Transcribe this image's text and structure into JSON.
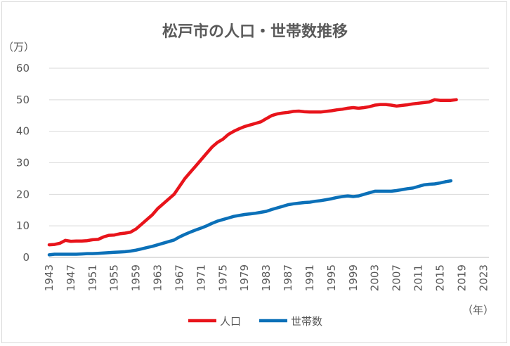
{
  "chart_data": {
    "type": "line",
    "title": "松戸市の人口・世帯数推移",
    "y_unit_label": "（万）",
    "x_unit_label": "（年）",
    "ylim": [
      0,
      60
    ],
    "yticks": [
      "0",
      "10",
      "20",
      "30",
      "40",
      "50",
      "60"
    ],
    "xlim": [
      1943,
      2024
    ],
    "xticks": [
      "1943",
      "1947",
      "1951",
      "1955",
      "1959",
      "1963",
      "1967",
      "1971",
      "1975",
      "1979",
      "1983",
      "1987",
      "1991",
      "1995",
      "1999",
      "2003",
      "2007",
      "2011",
      "2015",
      "2019",
      "2023"
    ],
    "grid": "horizontal",
    "legend_position": "bottom",
    "colors": {
      "population": "#e8141b",
      "households": "#0b70b8",
      "grid": "#d9d9d9",
      "axis": "#bfbfbf"
    },
    "series": [
      {
        "name": "人口",
        "color": "#e8141b",
        "points": [
          [
            1943,
            4.0
          ],
          [
            1944,
            4.1
          ],
          [
            1945,
            4.5
          ],
          [
            1946,
            5.4
          ],
          [
            1947,
            5.1
          ],
          [
            1948,
            5.2
          ],
          [
            1949,
            5.2
          ],
          [
            1950,
            5.3
          ],
          [
            1951,
            5.6
          ],
          [
            1952,
            5.7
          ],
          [
            1953,
            6.5
          ],
          [
            1954,
            7.0
          ],
          [
            1955,
            7.1
          ],
          [
            1956,
            7.5
          ],
          [
            1957,
            7.7
          ],
          [
            1958,
            8.0
          ],
          [
            1959,
            9.0
          ],
          [
            1960,
            10.5
          ],
          [
            1961,
            12.0
          ],
          [
            1962,
            13.5
          ],
          [
            1963,
            15.5
          ],
          [
            1964,
            17.0
          ],
          [
            1965,
            18.5
          ],
          [
            1966,
            20.0
          ],
          [
            1967,
            22.5
          ],
          [
            1968,
            25.0
          ],
          [
            1969,
            27.0
          ],
          [
            1970,
            29.0
          ],
          [
            1971,
            31.0
          ],
          [
            1972,
            33.0
          ],
          [
            1973,
            35.0
          ],
          [
            1974,
            36.5
          ],
          [
            1975,
            37.5
          ],
          [
            1976,
            39.0
          ],
          [
            1977,
            40.0
          ],
          [
            1978,
            40.8
          ],
          [
            1979,
            41.5
          ],
          [
            1980,
            42.0
          ],
          [
            1981,
            42.5
          ],
          [
            1982,
            43.0
          ],
          [
            1983,
            44.0
          ],
          [
            1984,
            45.0
          ],
          [
            1985,
            45.5
          ],
          [
            1986,
            45.8
          ],
          [
            1987,
            46.0
          ],
          [
            1988,
            46.3
          ],
          [
            1989,
            46.4
          ],
          [
            1990,
            46.2
          ],
          [
            1991,
            46.1
          ],
          [
            1992,
            46.1
          ],
          [
            1993,
            46.1
          ],
          [
            1994,
            46.3
          ],
          [
            1995,
            46.5
          ],
          [
            1996,
            46.8
          ],
          [
            1997,
            47.0
          ],
          [
            1998,
            47.3
          ],
          [
            1999,
            47.5
          ],
          [
            2000,
            47.3
          ],
          [
            2001,
            47.5
          ],
          [
            2002,
            47.8
          ],
          [
            2003,
            48.3
          ],
          [
            2004,
            48.5
          ],
          [
            2005,
            48.5
          ],
          [
            2006,
            48.3
          ],
          [
            2007,
            48.0
          ],
          [
            2008,
            48.2
          ],
          [
            2009,
            48.4
          ],
          [
            2010,
            48.7
          ],
          [
            2011,
            48.9
          ],
          [
            2012,
            49.1
          ],
          [
            2013,
            49.3
          ],
          [
            2014,
            50.0
          ],
          [
            2015,
            49.8
          ],
          [
            2016,
            49.8
          ],
          [
            2017,
            49.8
          ],
          [
            2018,
            50.0
          ]
        ]
      },
      {
        "name": "世帯数",
        "color": "#0b70b8",
        "points": [
          [
            1943,
            0.8
          ],
          [
            1944,
            1.0
          ],
          [
            1945,
            1.0
          ],
          [
            1946,
            1.0
          ],
          [
            1947,
            1.0
          ],
          [
            1948,
            1.0
          ],
          [
            1949,
            1.1
          ],
          [
            1950,
            1.2
          ],
          [
            1951,
            1.2
          ],
          [
            1952,
            1.3
          ],
          [
            1953,
            1.4
          ],
          [
            1954,
            1.5
          ],
          [
            1955,
            1.6
          ],
          [
            1956,
            1.7
          ],
          [
            1957,
            1.8
          ],
          [
            1958,
            2.0
          ],
          [
            1959,
            2.3
          ],
          [
            1960,
            2.7
          ],
          [
            1961,
            3.1
          ],
          [
            1962,
            3.5
          ],
          [
            1963,
            4.0
          ],
          [
            1964,
            4.5
          ],
          [
            1965,
            5.0
          ],
          [
            1966,
            5.5
          ],
          [
            1967,
            6.5
          ],
          [
            1968,
            7.3
          ],
          [
            1969,
            8.0
          ],
          [
            1970,
            8.7
          ],
          [
            1971,
            9.3
          ],
          [
            1972,
            10.0
          ],
          [
            1973,
            10.8
          ],
          [
            1974,
            11.5
          ],
          [
            1975,
            12.0
          ],
          [
            1976,
            12.5
          ],
          [
            1977,
            13.0
          ],
          [
            1978,
            13.3
          ],
          [
            1979,
            13.6
          ],
          [
            1980,
            13.8
          ],
          [
            1981,
            14.0
          ],
          [
            1982,
            14.3
          ],
          [
            1983,
            14.6
          ],
          [
            1984,
            15.2
          ],
          [
            1985,
            15.7
          ],
          [
            1986,
            16.2
          ],
          [
            1987,
            16.7
          ],
          [
            1988,
            17.0
          ],
          [
            1989,
            17.2
          ],
          [
            1990,
            17.4
          ],
          [
            1991,
            17.5
          ],
          [
            1992,
            17.8
          ],
          [
            1993,
            18.0
          ],
          [
            1994,
            18.3
          ],
          [
            1995,
            18.6
          ],
          [
            1996,
            19.0
          ],
          [
            1997,
            19.3
          ],
          [
            1998,
            19.5
          ],
          [
            1999,
            19.3
          ],
          [
            2000,
            19.5
          ],
          [
            2001,
            20.0
          ],
          [
            2002,
            20.5
          ],
          [
            2003,
            21.0
          ],
          [
            2004,
            21.0
          ],
          [
            2005,
            21.0
          ],
          [
            2006,
            21.0
          ],
          [
            2007,
            21.2
          ],
          [
            2008,
            21.5
          ],
          [
            2009,
            21.8
          ],
          [
            2010,
            22.0
          ],
          [
            2011,
            22.5
          ],
          [
            2012,
            23.0
          ],
          [
            2013,
            23.2
          ],
          [
            2014,
            23.3
          ],
          [
            2015,
            23.6
          ],
          [
            2016,
            24.0
          ],
          [
            2017,
            24.3
          ]
        ]
      }
    ]
  }
}
